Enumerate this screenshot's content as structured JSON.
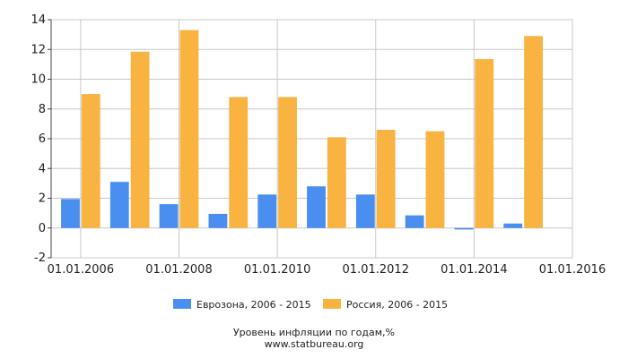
{
  "chart_data": {
    "type": "bar",
    "categories": [
      "2006",
      "2007",
      "2008",
      "2009",
      "2010",
      "2011",
      "2012",
      "2013",
      "2014",
      "2015"
    ],
    "series": [
      {
        "name": "Еврозона, 2006 - 2015",
        "color": "#4a8ef0",
        "values": [
          1.95,
          3.1,
          1.6,
          0.95,
          2.25,
          2.8,
          2.25,
          0.85,
          -0.1,
          0.3
        ]
      },
      {
        "name": "Россия, 2006 - 2015",
        "color": "#f8b340",
        "values": [
          9.0,
          11.85,
          13.3,
          8.8,
          8.8,
          6.1,
          6.6,
          6.5,
          11.35,
          12.9
        ]
      }
    ],
    "x_axis": {
      "tick_labels": [
        "01.01.2006",
        "01.01.2008",
        "01.01.2010",
        "01.01.2012",
        "01.01.2014",
        "01.01.2016"
      ],
      "ticks": [
        2006,
        2008,
        2010,
        2012,
        2014,
        2016
      ],
      "range": [
        2005.4,
        2016
      ]
    },
    "y_axis": {
      "ticks": [
        -2,
        0,
        2,
        4,
        6,
        8,
        10,
        12,
        14
      ],
      "tick_labels": [
        "-2",
        "0",
        "2",
        "4",
        "6",
        "8",
        "10",
        "12",
        "14"
      ],
      "range": [
        -2,
        14
      ]
    },
    "grid": true,
    "legend_position": "bottom",
    "caption": "Уровень инфляции по годам,%",
    "source": "www.statbureau.org"
  }
}
